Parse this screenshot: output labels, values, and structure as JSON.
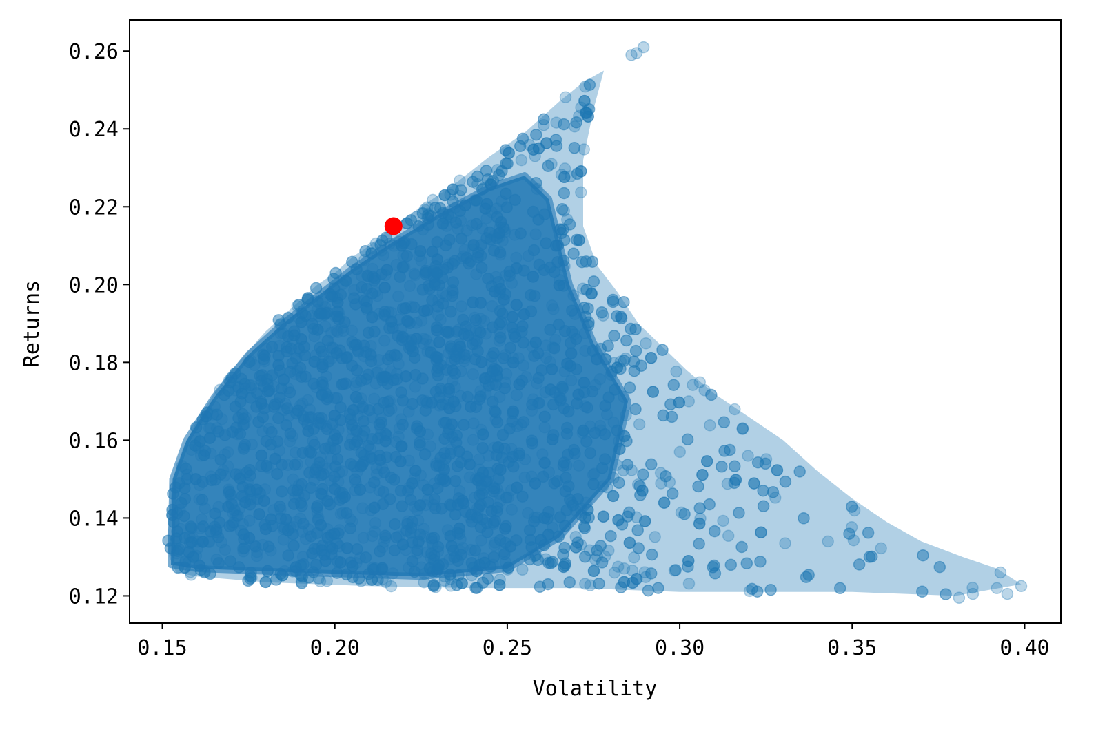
{
  "chart_data": {
    "type": "scatter",
    "title": "",
    "xlabel": "Volatility",
    "ylabel": "Returns",
    "xlim": [
      0.1405,
      0.4105
    ],
    "ylim": [
      0.113,
      0.268
    ],
    "xticks": [
      0.15,
      0.2,
      0.25,
      0.3,
      0.35,
      0.4
    ],
    "xtick_labels": [
      "0.15",
      "0.20",
      "0.25",
      "0.30",
      "0.35",
      "0.40"
    ],
    "yticks": [
      0.12,
      0.14,
      0.16,
      0.18,
      0.2,
      0.22,
      0.24,
      0.26
    ],
    "ytick_labels": [
      "0.12",
      "0.14",
      "0.16",
      "0.18",
      "0.20",
      "0.22",
      "0.24",
      "0.26"
    ],
    "grid": false,
    "legend": "none",
    "colors": {
      "points": "#1f77b4",
      "highlight": "#ff0000"
    },
    "series": [
      {
        "marker": "circle",
        "alpha": 0.3,
        "envelope": {
          "frontier_upper": [
            [
              0.1515,
              0.135
            ],
            [
              0.153,
              0.15
            ],
            [
              0.156,
              0.158
            ],
            [
              0.16,
              0.165
            ],
            [
              0.165,
              0.172
            ],
            [
              0.17,
              0.178
            ],
            [
              0.175,
              0.183
            ],
            [
              0.18,
              0.188
            ],
            [
              0.185,
              0.192
            ],
            [
              0.19,
              0.196
            ],
            [
              0.195,
              0.2
            ],
            [
              0.2,
              0.203
            ],
            [
              0.205,
              0.207
            ],
            [
              0.21,
              0.21
            ],
            [
              0.217,
              0.215
            ],
            [
              0.225,
              0.22
            ],
            [
              0.235,
              0.226
            ],
            [
              0.245,
              0.233
            ],
            [
              0.255,
              0.239
            ],
            [
              0.265,
              0.247
            ],
            [
              0.272,
              0.252
            ],
            [
              0.278,
              0.255
            ]
          ],
          "right_edge": [
            [
              0.278,
              0.255
            ],
            [
              0.275,
              0.245
            ],
            [
              0.272,
              0.232
            ],
            [
              0.272,
              0.215
            ],
            [
              0.276,
              0.205
            ],
            [
              0.282,
              0.198
            ],
            [
              0.288,
              0.19
            ],
            [
              0.295,
              0.184
            ],
            [
              0.302,
              0.178
            ],
            [
              0.31,
              0.172
            ],
            [
              0.32,
              0.166
            ],
            [
              0.33,
              0.16
            ],
            [
              0.34,
              0.152
            ],
            [
              0.35,
              0.145
            ],
            [
              0.36,
              0.139
            ],
            [
              0.37,
              0.134
            ],
            [
              0.382,
              0.13
            ],
            [
              0.392,
              0.127
            ],
            [
              0.399,
              0.123
            ]
          ],
          "lower_edge": [
            [
              0.399,
              0.123
            ],
            [
              0.38,
              0.12
            ],
            [
              0.35,
              0.121
            ],
            [
              0.3,
              0.121
            ],
            [
              0.27,
              0.122
            ],
            [
              0.24,
              0.122
            ],
            [
              0.21,
              0.1225
            ],
            [
              0.18,
              0.1235
            ],
            [
              0.16,
              0.125
            ],
            [
              0.154,
              0.126
            ],
            [
              0.152,
              0.13
            ],
            [
              0.1515,
              0.135
            ]
          ]
        },
        "count_estimate": 10000
      }
    ],
    "isolated_points": [
      {
        "x": 0.2895,
        "y": 0.261
      },
      {
        "x": 0.286,
        "y": 0.259
      },
      {
        "x": 0.2875,
        "y": 0.2595
      },
      {
        "x": 0.399,
        "y": 0.1225
      },
      {
        "x": 0.395,
        "y": 0.1205
      },
      {
        "x": 0.393,
        "y": 0.126
      },
      {
        "x": 0.385,
        "y": 0.1205
      },
      {
        "x": 0.381,
        "y": 0.1195
      }
    ],
    "highlight_point": {
      "x": 0.217,
      "y": 0.215,
      "color": "#ff0000"
    }
  }
}
